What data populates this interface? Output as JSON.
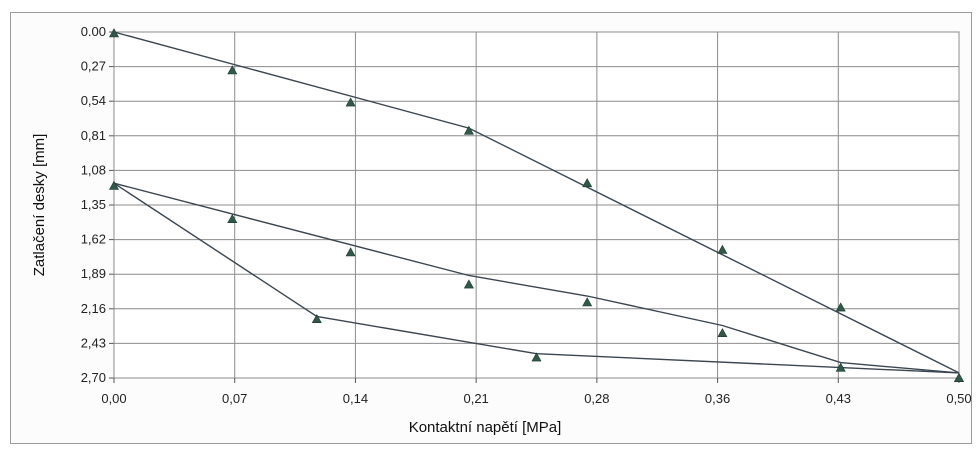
{
  "chart_data": {
    "type": "line",
    "title": "",
    "xlabel": "Kontaktní napětí [MPa]",
    "ylabel": "Zatlačení desky [mm]",
    "x_ticks": [
      "0,00",
      "0,07",
      "0,14",
      "0,21",
      "0,28",
      "0,36",
      "0,43",
      "0,50"
    ],
    "y_ticks": [
      "0.00",
      "0,27",
      "0,54",
      "0,81",
      "1,08",
      "1,35",
      "1,62",
      "1,89",
      "2,16",
      "2,43",
      "2,70"
    ],
    "xlim": [
      0,
      0.5
    ],
    "ylim": [
      0,
      2.7
    ],
    "y_inverted": true,
    "grid": true,
    "series": [
      {
        "role": "loading-1",
        "marker": "triangle",
        "points": [
          [
            0.0,
            0.01
          ],
          [
            0.07,
            0.3
          ],
          [
            0.14,
            0.55
          ],
          [
            0.21,
            0.77
          ],
          [
            0.28,
            1.18
          ],
          [
            0.36,
            1.7
          ],
          [
            0.43,
            2.15
          ],
          [
            0.5,
            2.7
          ]
        ],
        "line": [
          [
            0.0,
            0.0
          ],
          [
            0.21,
            0.75
          ],
          [
            0.5,
            2.66
          ]
        ]
      },
      {
        "role": "unloading",
        "marker": "triangle",
        "points": [
          [
            0.0,
            1.2
          ],
          [
            0.07,
            1.46
          ],
          [
            0.14,
            1.72
          ],
          [
            0.21,
            1.97
          ],
          [
            0.28,
            2.11
          ],
          [
            0.36,
            2.35
          ],
          [
            0.43,
            2.62
          ],
          [
            0.5,
            2.7
          ]
        ],
        "line": [
          [
            0.0,
            1.18
          ],
          [
            0.21,
            1.9
          ],
          [
            0.28,
            2.06
          ],
          [
            0.36,
            2.29
          ],
          [
            0.43,
            2.58
          ],
          [
            0.5,
            2.66
          ]
        ]
      },
      {
        "role": "loading-2",
        "marker": "triangle",
        "points": [
          [
            0.12,
            2.24
          ],
          [
            0.25,
            2.54
          ]
        ],
        "line": [
          [
            0.0,
            1.18
          ],
          [
            0.12,
            2.22
          ],
          [
            0.25,
            2.51
          ],
          [
            0.5,
            2.66
          ]
        ]
      }
    ],
    "colors": {
      "line": "#3c4650",
      "marker": "#2f5a4a",
      "grid": "#8c8c8c"
    }
  }
}
